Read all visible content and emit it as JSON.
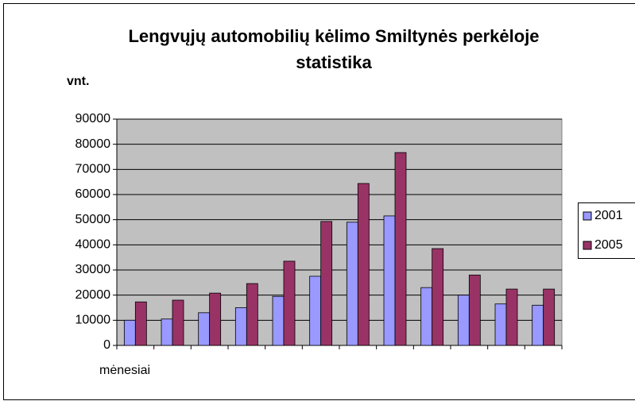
{
  "chart_data": {
    "type": "bar",
    "title": "Lengvųjų automobilių kėlimo Smiltynės perkėloje statistika",
    "y_label": "vnt.",
    "x_label": "mėnesiai",
    "categories": [
      null,
      null,
      null,
      null,
      null,
      null,
      null,
      null,
      null,
      null,
      null,
      null
    ],
    "series": [
      {
        "name": "2001",
        "color": "#9999ff",
        "values": [
          10000,
          10500,
          13000,
          15000,
          19500,
          27500,
          49000,
          51500,
          23000,
          20000,
          16500,
          16000
        ]
      },
      {
        "name": "2005",
        "color": "#993366",
        "values": [
          17300,
          18000,
          20800,
          24600,
          33500,
          49300,
          64400,
          76700,
          38500,
          28000,
          22400,
          22400
        ]
      }
    ],
    "ylim": [
      0,
      90000
    ],
    "yticks": [
      0,
      10000,
      20000,
      30000,
      40000,
      50000,
      60000,
      70000,
      80000,
      90000
    ],
    "grid": true,
    "legend": "right"
  }
}
